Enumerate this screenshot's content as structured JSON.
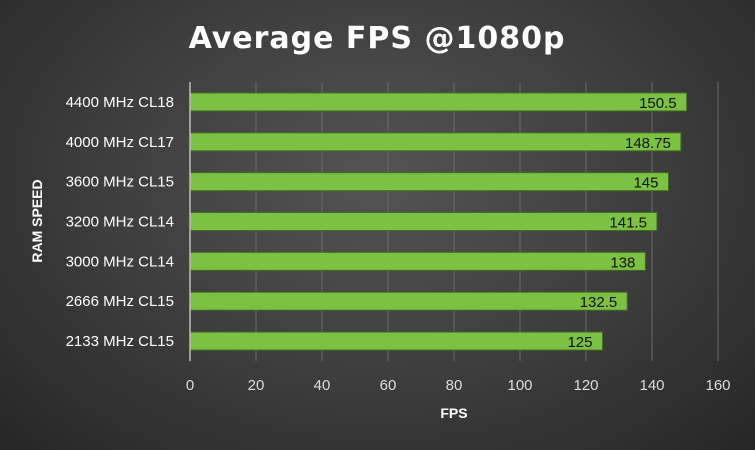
{
  "chart_data": {
    "type": "bar",
    "orientation": "horizontal",
    "title": "Average FPS @1080p",
    "xlabel": "FPS",
    "ylabel": "RAM SPEED",
    "categories": [
      "4400 MHz CL18",
      "4000 MHz CL17",
      "3600 MHz CL15",
      "3200 MHz CL14",
      "3000 MHz CL14",
      "2666 MHz CL15",
      "2133 MHz CL15"
    ],
    "values": [
      150.5,
      148.75,
      145,
      141.5,
      138,
      132.5,
      125
    ],
    "data_labels": [
      "150.5",
      "148.75",
      "145",
      "141.5",
      "138",
      "132.5",
      "125"
    ],
    "xlim": [
      0,
      160
    ],
    "ticks": [
      "0",
      "20",
      "40",
      "60",
      "80",
      "100",
      "120",
      "140",
      "160"
    ],
    "grid": true,
    "bar_color": "#7cc142",
    "bar_border_color": "#3f6e1f"
  }
}
